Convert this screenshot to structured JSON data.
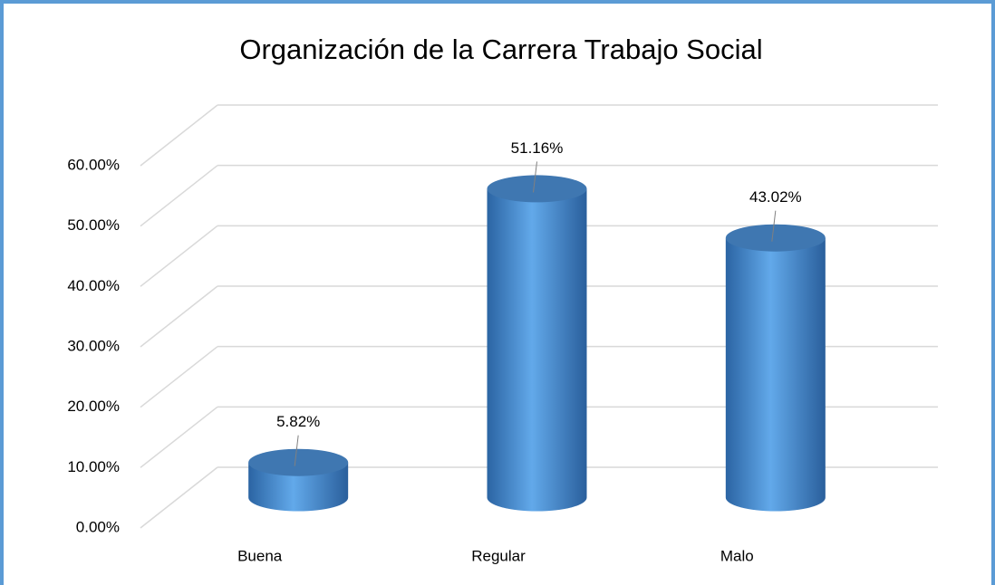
{
  "chart_data": {
    "type": "bar3d",
    "title": "Organización de la Carrera Trabajo Social",
    "categories": [
      "Buena",
      "Regular",
      "Malo"
    ],
    "values": [
      5.82,
      51.16,
      43.02
    ],
    "value_labels": [
      "5.82%",
      "51.16%",
      "43.02%"
    ],
    "color": "#4a8fd4",
    "ylim": [
      0,
      60
    ],
    "yticks": [
      {
        "value": 0,
        "label": "0.00%"
      },
      {
        "value": 10,
        "label": "10.00%"
      },
      {
        "value": 20,
        "label": "20.00%"
      },
      {
        "value": 30,
        "label": "30.00%"
      },
      {
        "value": 40,
        "label": "40.00%"
      },
      {
        "value": 50,
        "label": "50.00%"
      },
      {
        "value": 60,
        "label": "60.00%"
      }
    ],
    "grid": true
  }
}
